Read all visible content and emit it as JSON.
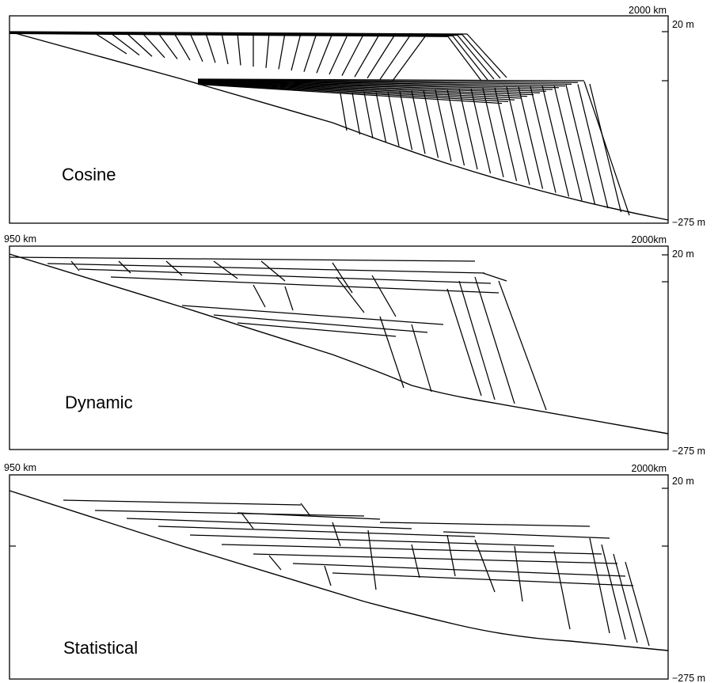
{
  "panels": [
    {
      "id": "cosine",
      "name": "Cosine",
      "top_left_label": "",
      "top_right_label": "2000 km",
      "upper_depth_label": "20 m",
      "lower_depth_label": "−275 m"
    },
    {
      "id": "dynamic",
      "name": "Dynamic",
      "top_left_label": "950  km",
      "top_right_label": "2000km",
      "upper_depth_label": "20 m",
      "lower_depth_label": "−275 m"
    },
    {
      "id": "statistical",
      "name": "Statistical",
      "top_left_label": "950  km",
      "top_right_label": "2000km",
      "upper_depth_label": "20 m",
      "lower_depth_label": "−275 m"
    }
  ]
}
